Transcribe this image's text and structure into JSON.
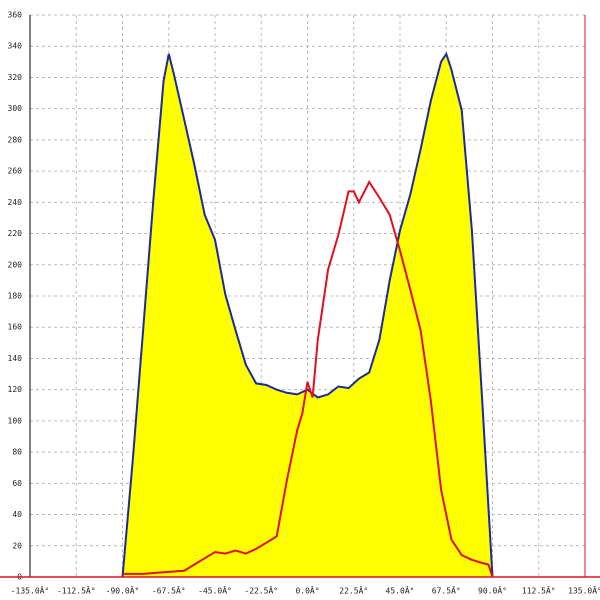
{
  "chart_data": {
    "type": "line",
    "grid": true,
    "xlim": [
      -135,
      135
    ],
    "ylim": [
      0,
      360
    ],
    "xticks": [
      {
        "value": -135,
        "label": "-135.0Â°"
      },
      {
        "value": -112.5,
        "label": "-112.5Â°"
      },
      {
        "value": -90,
        "label": "-90.0Â°"
      },
      {
        "value": -67.5,
        "label": "-67.5Â°"
      },
      {
        "value": -45,
        "label": "-45.0Â°"
      },
      {
        "value": -22.5,
        "label": "-22.5Â°"
      },
      {
        "value": 0,
        "label": "0.0Â°"
      },
      {
        "value": 22.5,
        "label": "22.5Â°"
      },
      {
        "value": 45,
        "label": "45.0Â°"
      },
      {
        "value": 67.5,
        "label": "67.5Â°"
      },
      {
        "value": 90,
        "label": "90.0Â°"
      },
      {
        "value": 112.5,
        "label": "112.5Â°"
      },
      {
        "value": 135,
        "label": "135.0Â°"
      }
    ],
    "yticks": [
      0,
      20,
      40,
      60,
      80,
      100,
      120,
      140,
      160,
      180,
      200,
      220,
      240,
      260,
      280,
      300,
      320,
      340,
      360
    ],
    "series": [
      {
        "color": "#1a2a9a",
        "fill": "#ffff00",
        "x": [
          -90,
          -85,
          -80,
          -75,
          -70,
          -67.5,
          -65,
          -60,
          -55,
          -50,
          -45,
          -40,
          -35,
          -30,
          -25,
          -20,
          -15,
          -10,
          -5,
          0,
          5,
          10,
          15,
          20,
          25,
          30,
          35,
          40,
          45,
          50,
          55,
          60,
          65,
          67.5,
          70,
          75,
          80,
          85,
          90
        ],
        "values": [
          0,
          75,
          158,
          241,
          318,
          335,
          322,
          293,
          264,
          232,
          216,
          181,
          158,
          136,
          124,
          123,
          120,
          118,
          117,
          120,
          115,
          117,
          122,
          121,
          127,
          131,
          152,
          190,
          222,
          245,
          274,
          305,
          330,
          335,
          325,
          299,
          222,
          113,
          0
        ]
      },
      {
        "color": "#e01020",
        "x": [
          -90,
          -80,
          -70,
          -60,
          -55,
          -50,
          -45,
          -40,
          -35,
          -30,
          -25,
          -20,
          -15,
          -10,
          -5,
          -2.5,
          0,
          2.5,
          5,
          10,
          15,
          20,
          22.5,
          25,
          30,
          35,
          40,
          45,
          50,
          55,
          60,
          65,
          70,
          75,
          80,
          85,
          88,
          90
        ],
        "values": [
          2,
          2,
          3,
          4,
          8,
          12,
          16,
          15,
          17,
          15,
          18,
          22,
          26,
          62,
          94,
          105,
          125,
          115,
          152,
          197,
          219,
          247,
          247,
          240,
          253,
          243,
          232,
          209,
          184,
          158,
          113,
          56,
          24,
          14,
          11,
          9,
          8,
          0
        ]
      }
    ]
  }
}
